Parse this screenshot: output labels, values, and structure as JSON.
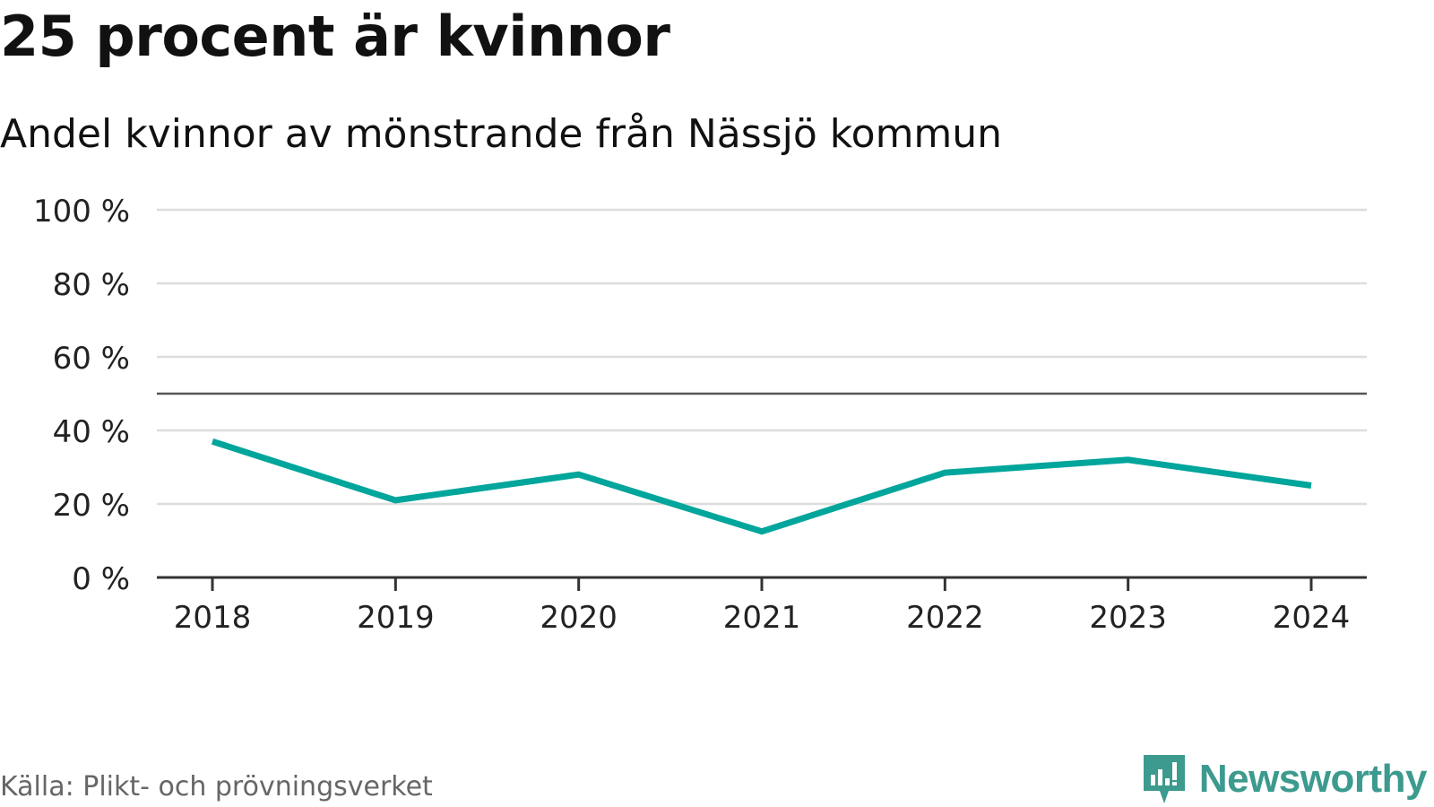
{
  "header": {
    "title": "25 procent är kvinnor",
    "subtitle": "Andel kvinnor av mönstrande från Nässjö kommun"
  },
  "footer": {
    "source": "Källa: Plikt- och prövningsverket",
    "brand": "Newsworthy",
    "brand_icon": "bar-chart-speech-bubble-icon"
  },
  "colors": {
    "line": "#00a59b",
    "gridline": "#dddddd",
    "reference_line": "#555555",
    "axis": "#333333",
    "brand": "#3c9a8e"
  },
  "chart_data": {
    "type": "line",
    "title": "25 procent är kvinnor",
    "subtitle": "Andel kvinnor av mönstrande från Nässjö kommun",
    "xlabel": "",
    "ylabel": "",
    "x": [
      "2018",
      "2019",
      "2020",
      "2021",
      "2022",
      "2023",
      "2024"
    ],
    "series": [
      {
        "values": [
          37,
          21,
          28,
          12.5,
          28.5,
          32,
          25
        ]
      }
    ],
    "ylim": [
      0,
      100
    ],
    "yticks": [
      0,
      20,
      40,
      60,
      80,
      100
    ],
    "ytick_labels": [
      "0 %",
      "20 %",
      "40 %",
      "60 %",
      "80 %",
      "100 %"
    ],
    "reference_line": 50,
    "grid": true,
    "legend": "none"
  }
}
